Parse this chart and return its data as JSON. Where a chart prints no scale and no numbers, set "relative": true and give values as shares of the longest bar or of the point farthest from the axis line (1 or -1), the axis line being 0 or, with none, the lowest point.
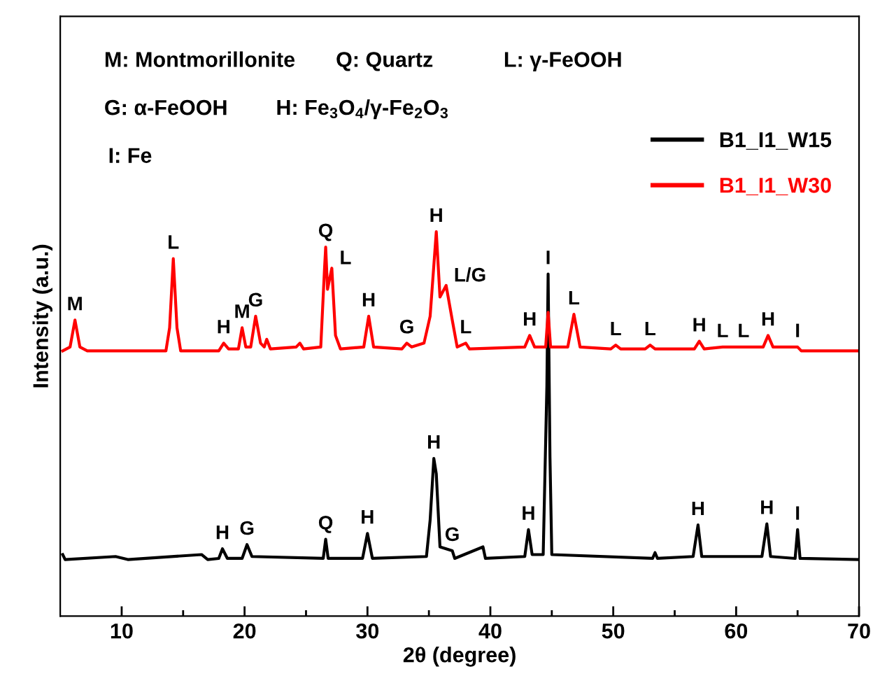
{
  "chart_data": {
    "type": "line",
    "relative": true,
    "xlabel": "2θ (degree)",
    "ylabel": "Intensity (a.u.)",
    "xlim": [
      5,
      70
    ],
    "xticks": [
      10,
      {
        "value": 15,
        "label": null
      },
      20,
      {
        "value": 25,
        "label": null
      },
      30,
      {
        "value": 35,
        "label": null
      },
      40,
      {
        "value": 45,
        "label": null
      },
      50,
      {
        "value": 55,
        "label": null
      },
      60,
      {
        "value": 65,
        "label": null
      },
      70
    ],
    "tick_labels": "x",
    "legend": "top right",
    "grid": false,
    "marker": "none",
    "line_style": "solid",
    "series": [
      {
        "name": "B1_I1_W15",
        "color": "#000000",
        "x": [
          5.2,
          5.4,
          9.5,
          10.5,
          16.5,
          17,
          17.9,
          18.2,
          18.6,
          19.8,
          20.2,
          20.6,
          26.4,
          26.6,
          26.8,
          29.6,
          30.0,
          30.4,
          34.8,
          35.1,
          35.4,
          35.6,
          35.9,
          36.9,
          37.1,
          39.4,
          39.6,
          42.8,
          43.1,
          43.4,
          44.3,
          44.6,
          44.7,
          44.85,
          45.0,
          53.2,
          53.4,
          53.6,
          56.5,
          56.9,
          57.2,
          62.1,
          62.5,
          62.8,
          64.8,
          65.0,
          65.2,
          70
        ],
        "values": [
          0.16,
          0.147,
          0.155,
          0.147,
          0.16,
          0.147,
          0.15,
          0.175,
          0.15,
          0.15,
          0.186,
          0.155,
          0.15,
          0.2,
          0.15,
          0.15,
          0.215,
          0.15,
          0.155,
          0.25,
          0.41,
          0.37,
          0.18,
          0.17,
          0.15,
          0.18,
          0.15,
          0.155,
          0.225,
          0.16,
          0.16,
          0.6,
          0.89,
          0.415,
          0.16,
          0.15,
          0.165,
          0.15,
          0.155,
          0.237,
          0.155,
          0.155,
          0.24,
          0.155,
          0.15,
          0.225,
          0.15,
          0.147
        ]
      },
      {
        "name": "B1_I1_W30",
        "color": "#ff0000",
        "x": [
          5.2,
          5.8,
          6.2,
          6.6,
          7.2,
          10,
          13.6,
          13.9,
          14.2,
          14.5,
          14.8,
          17.9,
          18.3,
          18.7,
          19.5,
          19.8,
          20.1,
          20.5,
          20.9,
          21.3,
          21.6,
          21.8,
          22.1,
          24.2,
          24.5,
          24.8,
          26.2,
          26.5,
          26.6,
          26.75,
          27.1,
          27.4,
          27.8,
          29.7,
          30.1,
          30.5,
          32.8,
          33.2,
          33.6,
          34.6,
          35.1,
          35.6,
          35.9,
          36.4,
          36.9,
          37.3,
          38.0,
          38.3,
          42.8,
          43.2,
          43.6,
          44.5,
          44.7,
          44.9,
          46.3,
          46.8,
          47.3,
          49.8,
          50.2,
          50.6,
          52.6,
          53.0,
          53.4,
          56.6,
          57.0,
          57.4,
          58.9,
          60.6,
          62.2,
          62.6,
          63.0,
          65.0,
          65.3,
          70
        ],
        "values": [
          0.69,
          0.7,
          0.77,
          0.7,
          0.69,
          0.69,
          0.69,
          0.75,
          0.93,
          0.75,
          0.69,
          0.69,
          0.71,
          0.695,
          0.695,
          0.75,
          0.7,
          0.7,
          0.78,
          0.71,
          0.7,
          0.72,
          0.695,
          0.7,
          0.71,
          0.695,
          0.7,
          0.9,
          0.96,
          0.85,
          0.905,
          0.73,
          0.695,
          0.7,
          0.78,
          0.7,
          0.695,
          0.71,
          0.7,
          0.71,
          0.78,
          1.0,
          0.83,
          0.86,
          0.77,
          0.7,
          0.71,
          0.695,
          0.7,
          0.73,
          0.7,
          0.7,
          0.79,
          0.7,
          0.7,
          0.785,
          0.7,
          0.695,
          0.705,
          0.695,
          0.695,
          0.705,
          0.695,
          0.695,
          0.715,
          0.695,
          0.7,
          0.7,
          0.7,
          0.73,
          0.7,
          0.7,
          0.69,
          0.69
        ]
      }
    ],
    "annotations": [
      "M: Montmorillonite",
      "Q: Quartz",
      "L: γ-FeOOH",
      "G: α-FeOOH",
      "H: Fe$_{3}$O$_{4}$/γ-Fe$_{2}$O$_{3}$",
      "I: Fe",
      {
        "text": "M",
        "x": 6.2,
        "y": 0.77
      },
      {
        "text": "L",
        "x": 14.2,
        "y": 0.93
      },
      {
        "text": "H",
        "x": 18.3,
        "y": 0.71
      },
      {
        "text": "M",
        "x": 19.8,
        "y": 0.75
      },
      {
        "text": "G",
        "x": 20.9,
        "y": 0.78
      },
      {
        "text": "Q",
        "x": 26.6,
        "y": 0.96
      },
      {
        "text": "L",
        "x": 27.1,
        "y": 0.905
      },
      {
        "text": "H",
        "x": 30.1,
        "y": 0.78
      },
      {
        "text": "G",
        "x": 33.2,
        "y": 0.71
      },
      {
        "text": "H",
        "x": 35.6,
        "y": 1.0
      },
      {
        "text": "L/G",
        "x": 36.4,
        "y": 0.86
      },
      {
        "text": "L",
        "x": 38.0,
        "y": 0.71
      },
      {
        "text": "H",
        "x": 43.2,
        "y": 0.73
      },
      {
        "text": "I",
        "x": 44.7,
        "y": 0.89
      },
      {
        "text": "L",
        "x": 46.8,
        "y": 0.785
      },
      {
        "text": "L",
        "x": 50.2,
        "y": 0.705
      },
      {
        "text": "L",
        "x": 53.0,
        "y": 0.705
      },
      {
        "text": "H",
        "x": 57.0,
        "y": 0.715
      },
      {
        "text": "L",
        "x": 58.9,
        "y": 0.7
      },
      {
        "text": "L",
        "x": 60.6,
        "y": 0.7
      },
      {
        "text": "H",
        "x": 62.6,
        "y": 0.73
      },
      {
        "text": "I",
        "x": 65.0,
        "y": 0.7
      },
      {
        "text": "H",
        "x": 18.2,
        "y": 0.175
      },
      {
        "text": "G",
        "x": 20.2,
        "y": 0.186
      },
      {
        "text": "Q",
        "x": 26.6,
        "y": 0.2
      },
      {
        "text": "H",
        "x": 30.0,
        "y": 0.215
      },
      {
        "text": "H",
        "x": 35.4,
        "y": 0.41
      },
      {
        "text": "G",
        "x": 36.9,
        "y": 0.17
      },
      {
        "text": "H",
        "x": 43.1,
        "y": 0.225
      },
      {
        "text": "H",
        "x": 56.9,
        "y": 0.237
      },
      {
        "text": "H",
        "x": 62.5,
        "y": 0.24
      },
      {
        "text": "I",
        "x": 65.0,
        "y": 0.225
      }
    ]
  }
}
